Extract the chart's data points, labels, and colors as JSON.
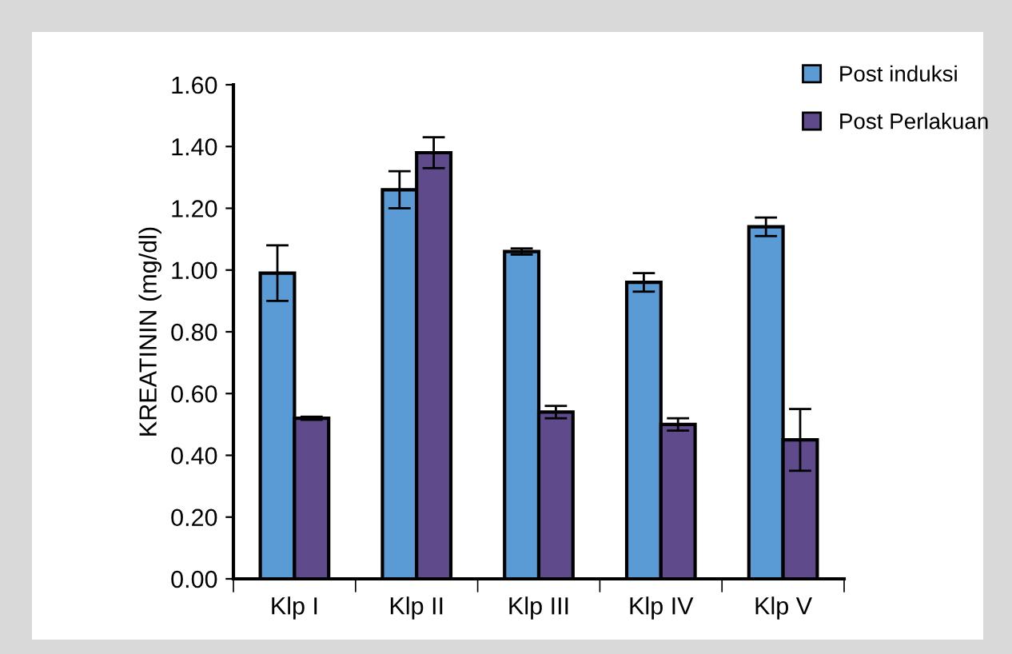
{
  "chart_data": {
    "type": "bar",
    "ylabel": "KREATININ (mg/dl)",
    "categories": [
      "Klp I",
      "Klp II",
      "Klp III",
      "Klp IV",
      "Klp V"
    ],
    "series": [
      {
        "name": "Post induksi",
        "color": "#5b9bd5",
        "values": [
          0.99,
          1.26,
          1.06,
          0.96,
          1.14
        ],
        "errors": [
          0.09,
          0.06,
          0.01,
          0.03,
          0.03
        ]
      },
      {
        "name": "Post Perlakuan",
        "color": "#5f4b8b",
        "values": [
          0.52,
          1.38,
          0.54,
          0.5,
          0.45
        ],
        "errors": [
          0.005,
          0.05,
          0.02,
          0.02,
          0.1
        ]
      }
    ],
    "ylim": [
      0,
      1.6
    ],
    "yticks": [
      {
        "value": 0,
        "label": "0.00"
      },
      {
        "value": 0.2,
        "label": "0.20"
      },
      {
        "value": 0.4,
        "label": "0.40"
      },
      {
        "value": 0.6,
        "label": "0.60"
      },
      {
        "value": 0.8,
        "label": "0.80"
      },
      {
        "value": 1.0,
        "label": "1.00"
      },
      {
        "value": 1.2,
        "label": "1.20"
      },
      {
        "value": 1.4,
        "label": "1.40"
      },
      {
        "value": 1.6,
        "label": "1.60"
      }
    ],
    "grid": false,
    "legend": "top right"
  }
}
